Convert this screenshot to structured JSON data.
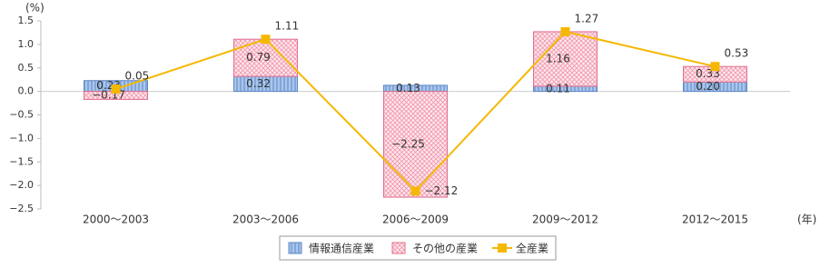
{
  "chart_data": {
    "type": "bar",
    "stacked": true,
    "y_unit": "(%)",
    "x_unit": "(年)",
    "categories": [
      "2000～2003",
      "2003～2006",
      "2006～2009",
      "2009～2012",
      "2012～2015"
    ],
    "series": [
      {
        "name": "情報通信産業",
        "type": "bar",
        "color": "#a9c6ec",
        "values": [
          0.23,
          0.32,
          0.13,
          0.11,
          0.2
        ],
        "value_labels": [
          "0.23",
          "0.32",
          "0.13",
          "0.11",
          "0.20"
        ]
      },
      {
        "name": "その他の産業",
        "type": "bar",
        "color": "#f3b5c4",
        "values": [
          -0.17,
          0.79,
          -2.25,
          1.16,
          0.33
        ],
        "value_labels": [
          "−0.17",
          "0.79",
          "−2.25",
          "1.16",
          "0.33"
        ]
      },
      {
        "name": "全産業",
        "type": "line",
        "color": "#f5b800",
        "values": [
          0.05,
          1.11,
          -2.12,
          1.27,
          0.53
        ],
        "value_labels": [
          "0.05",
          "1.11",
          "−2.12",
          "1.27",
          "0.53"
        ]
      }
    ],
    "ylim": [
      -2.5,
      1.5
    ],
    "yticks": [
      {
        "value": -2.5,
        "label": "−2.5"
      },
      {
        "value": -2.0,
        "label": "−2.0"
      },
      {
        "value": -1.5,
        "label": "−1.5"
      },
      {
        "value": -1.0,
        "label": "−1.0"
      },
      {
        "value": -0.5,
        "label": "−0.5"
      },
      {
        "value": 0,
        "label": "0.0"
      },
      0.5,
      {
        "value": 1,
        "label": "1.0"
      },
      1.5
    ],
    "legend": "bottom"
  }
}
